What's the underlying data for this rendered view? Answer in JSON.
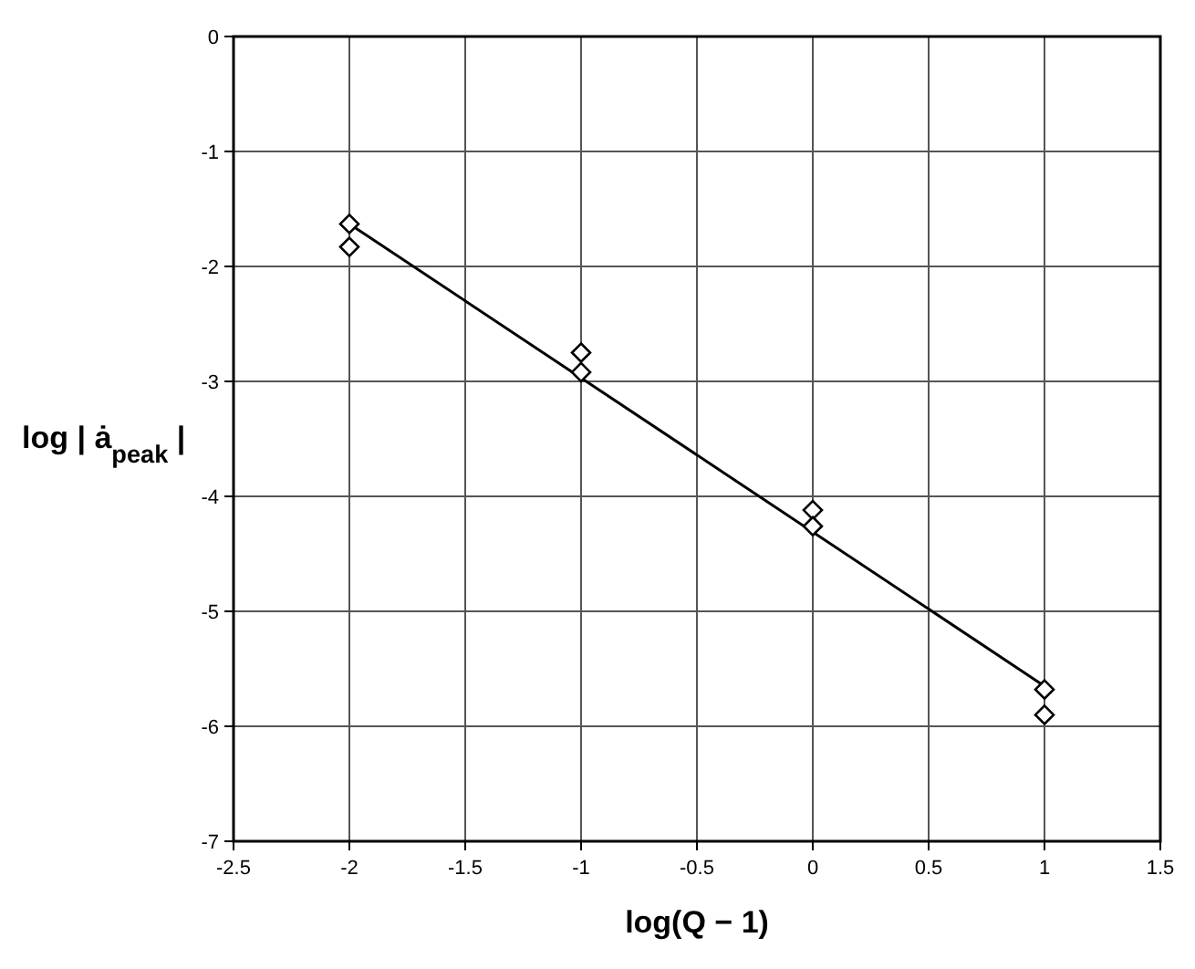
{
  "chart_data": {
    "type": "scatter",
    "xlabel": "log(Q − 1)",
    "ylabel": "log | ȧ$_{peak}$ |",
    "xlim": [
      -2.5,
      1.5
    ],
    "xticks": [
      -2.5,
      -2,
      -1.5,
      -1,
      -0.5,
      0,
      0.5,
      1,
      1.5
    ],
    "ylim": [
      -7,
      0
    ],
    "yticks": [
      -7,
      -6,
      -5,
      -4,
      -3,
      -2,
      -1,
      0
    ],
    "grid": true,
    "series": [
      {
        "type": "scatter",
        "color": "#000000",
        "marker": "diamond",
        "x": [
          -2,
          -2,
          -1,
          -1,
          0,
          0,
          1,
          1
        ],
        "values": [
          -1.63,
          -1.83,
          -2.75,
          -2.92,
          -4.12,
          -4.26,
          -5.68,
          -5.9
        ]
      },
      {
        "type": "line",
        "color": "#000000",
        "marker": "none",
        "line_style": "solid",
        "x": [
          -2,
          1
        ],
        "values": [
          -1.63,
          -5.65
        ]
      }
    ]
  }
}
